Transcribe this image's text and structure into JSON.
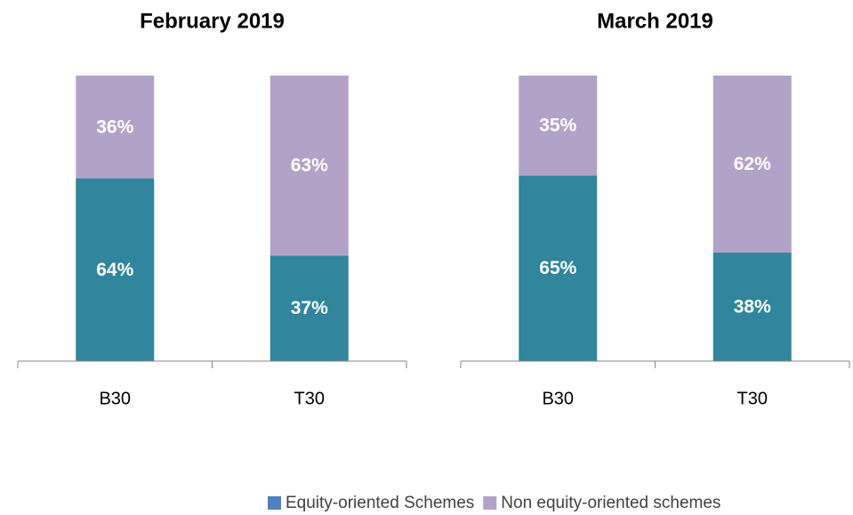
{
  "chart_data": [
    {
      "type": "bar",
      "stacked": true,
      "title": "February 2019",
      "categories": [
        "B30",
        "T30"
      ],
      "ylim": [
        0,
        100
      ],
      "series": [
        {
          "color": "#31859c",
          "values": [
            64,
            37
          ],
          "value_labels": [
            "64%",
            "37%"
          ]
        },
        {
          "color": "#b3a2c7",
          "values": [
            36,
            63
          ],
          "value_labels": [
            "36%",
            "63%"
          ]
        }
      ]
    },
    {
      "type": "bar",
      "stacked": true,
      "title": "March 2019",
      "categories": [
        "B30",
        "T30"
      ],
      "ylim": [
        0,
        100
      ],
      "series": [
        {
          "color": "#31859c",
          "values": [
            65,
            38
          ],
          "value_labels": [
            "65%",
            "38%"
          ]
        },
        {
          "color": "#b3a2c7",
          "values": [
            35,
            62
          ],
          "value_labels": [
            "35%",
            "62%"
          ]
        }
      ]
    }
  ],
  "legend": [
    {
      "name": "Equity-oriented Schemes",
      "color": "#4f81bd"
    },
    {
      "name": "Non equity-oriented schemes",
      "color": "#b3a2c7"
    }
  ]
}
